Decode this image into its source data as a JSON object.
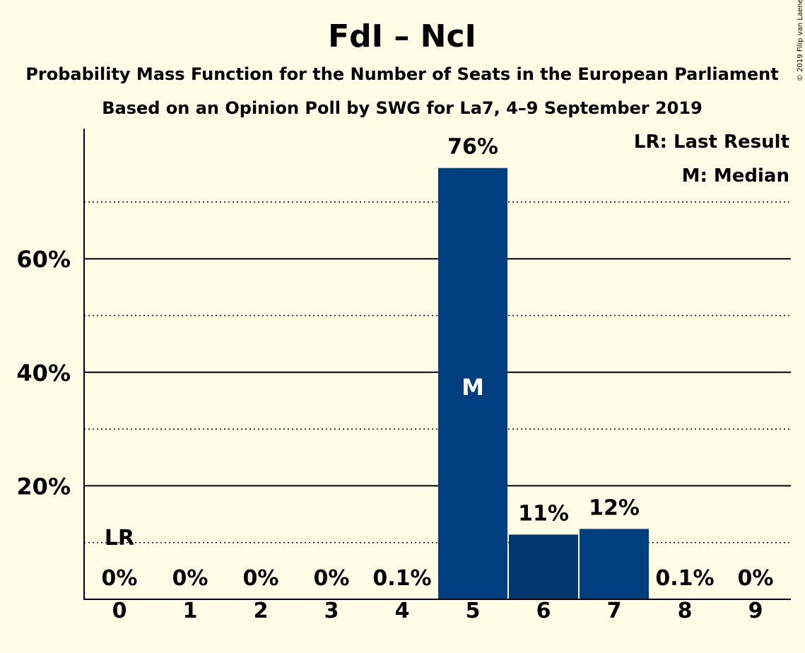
{
  "chart_data": {
    "type": "bar",
    "title": "FdI – NcI",
    "subtitle_1": "Probability Mass Function for the Number of Seats in the European Parliament",
    "subtitle_2": "Based on an Opinion Poll by SWG for La7, 4–9 September 2019",
    "categories": [
      "0",
      "1",
      "2",
      "3",
      "4",
      "5",
      "6",
      "7",
      "8",
      "9"
    ],
    "values": [
      0,
      0,
      0,
      0,
      0.1,
      76,
      11.4,
      12.4,
      0.1,
      0
    ],
    "value_labels": [
      "0%",
      "0%",
      "0%",
      "0%",
      "0.1%",
      "76%",
      "11%",
      "12%",
      "0.1%",
      "0%"
    ],
    "bar_colors": [
      "#003f7f",
      "#003f7f",
      "#003f7f",
      "#003f7f",
      "#003f7f",
      "#003f7f",
      "#00386e",
      "#003f7f",
      "#003f7f",
      "#003f7f"
    ],
    "y_ticks": [
      20,
      40,
      60
    ],
    "y_tick_labels": [
      "20%",
      "40%",
      "60%"
    ],
    "minor_gridlines": [
      10,
      30,
      50,
      70
    ],
    "ylim": [
      0,
      83
    ],
    "last_result": {
      "category": "0",
      "label": "LR"
    },
    "median": {
      "category": "5",
      "label": "M"
    },
    "legend": [
      "LR: Last Result",
      "M: Median"
    ],
    "legend_position": "top-right",
    "copyright": "© 2019 Filip van Laenen"
  }
}
